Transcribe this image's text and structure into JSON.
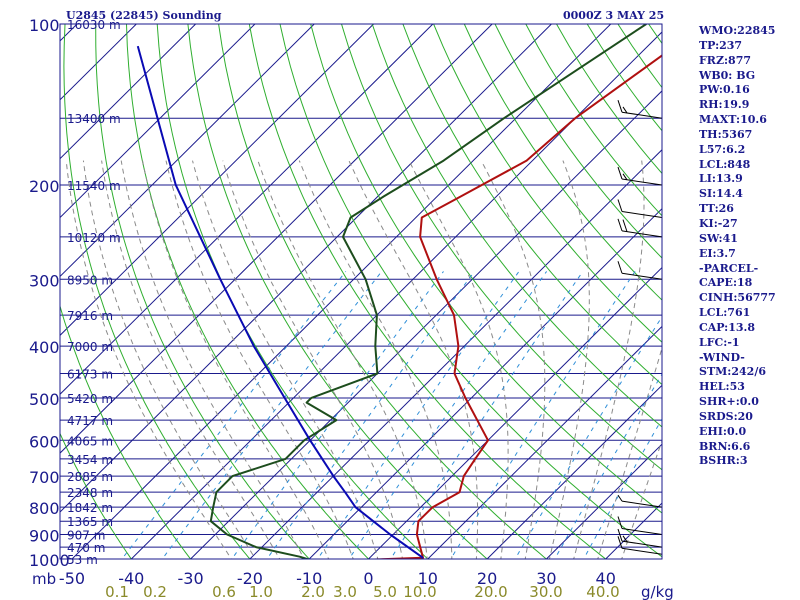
{
  "header": {
    "title": "U2845 (22845) Sounding",
    "time": "0000Z  3 MAY 25"
  },
  "stats": [
    "WMO:22845",
    "TP:237",
    "FRZ:877",
    "WB0: BG",
    "PW:0.16",
    "RH:19.9",
    "MAXT:10.6",
    "TH:5367",
    "L57:6.2",
    "LCL:848",
    "LI:13.9",
    "SI:14.4",
    "TT:26",
    "KI:-27",
    "SW:41",
    "EI:3.7",
    "-PARCEL-",
    "CAPE:18",
    "CINH:56777",
    "LCL:761",
    "CAP:13.8",
    "LFC:-1",
    "-WIND-",
    "STM:242/6",
    "HEL:53",
    "SHR+:0.0",
    "SRDS:20",
    "EHI:0.0",
    "BRN:6.6",
    "BSHR:3"
  ],
  "colors": {
    "frame": "#1a1a8c",
    "isobar": "#1a1a8c",
    "isotherm": "#1a1a8c",
    "dry_adiabat": "#2fae2f",
    "moist_adiabat": "#8a8a8a",
    "mixing_ratio": "#2f8fd8",
    "temperature": "#b01010",
    "dewpoint": "#1d4d1d",
    "parcel": "#0a0ab4",
    "mixing_ratio_label": "#8a8a2a",
    "text": "#1a1a8c"
  },
  "chart_data": {
    "type": "skew-t",
    "pressure_unit": "mb",
    "pressure_levels": [
      100,
      200,
      300,
      400,
      500,
      600,
      700,
      800,
      900,
      1000
    ],
    "height_labels": [
      {
        "p": 100,
        "text": "16030 m"
      },
      {
        "p": 150,
        "text": "13400 m"
      },
      {
        "p": 200,
        "text": "11540 m"
      },
      {
        "p": 250,
        "text": "10120 m"
      },
      {
        "p": 300,
        "text": "8950 m"
      },
      {
        "p": 350,
        "text": "7916 m"
      },
      {
        "p": 400,
        "text": "7000 m"
      },
      {
        "p": 450,
        "text": "6173 m"
      },
      {
        "p": 500,
        "text": "5420 m"
      },
      {
        "p": 550,
        "text": "4717 m"
      },
      {
        "p": 600,
        "text": "4065 m"
      },
      {
        "p": 650,
        "text": "3454 m"
      },
      {
        "p": 700,
        "text": "2885 m"
      },
      {
        "p": 750,
        "text": "2348 m"
      },
      {
        "p": 800,
        "text": "1842 m"
      },
      {
        "p": 850,
        "text": "1365 m"
      },
      {
        "p": 900,
        "text": "907 m"
      },
      {
        "p": 950,
        "text": "470 m"
      },
      {
        "p": 1000,
        "text": "53 m"
      }
    ],
    "temperature_ticks": [
      -50,
      -40,
      -30,
      -20,
      -10,
      0,
      10,
      20,
      30,
      40
    ],
    "temperature_tick_labels": [
      "-50",
      "-40",
      "-30",
      "-20",
      "-10",
      "0",
      "10",
      "20",
      "30",
      "40"
    ],
    "mixing_ratio_labels": [
      "0.1",
      "0.2",
      "0.6",
      "1.0",
      "2.0",
      "3.0",
      "5.0",
      "10.0",
      "20.0",
      "30.0",
      "40.0"
    ],
    "mixing_ratio_unit": "g/kg",
    "series": [
      {
        "key": "temperature",
        "points": [
          [
            1002,
            1
          ],
          [
            995,
            9
          ],
          [
            900,
            4
          ],
          [
            850,
            2
          ],
          [
            800,
            2
          ],
          [
            750,
            4
          ],
          [
            700,
            2
          ],
          [
            650,
            1
          ],
          [
            600,
            0
          ],
          [
            500,
            -11
          ],
          [
            450,
            -17
          ],
          [
            400,
            -21
          ],
          [
            350,
            -27
          ],
          [
            300,
            -36
          ],
          [
            250,
            -46
          ],
          [
            230,
            -49
          ],
          [
            210,
            -46
          ],
          [
            180,
            -41
          ],
          [
            150,
            -40
          ],
          [
            100,
            -34
          ]
        ]
      },
      {
        "key": "dewpoint",
        "points": [
          [
            1002,
            -10
          ],
          [
            990,
            -12
          ],
          [
            950,
            -21
          ],
          [
            900,
            -28
          ],
          [
            850,
            -33
          ],
          [
            800,
            -35
          ],
          [
            750,
            -37
          ],
          [
            700,
            -37
          ],
          [
            650,
            -31
          ],
          [
            600,
            -31
          ],
          [
            550,
            -29
          ],
          [
            510,
            -37
          ],
          [
            500,
            -37
          ],
          [
            450,
            -30
          ],
          [
            400,
            -35
          ],
          [
            350,
            -40
          ],
          [
            300,
            -48
          ],
          [
            250,
            -59
          ],
          [
            230,
            -61
          ],
          [
            210,
            -59
          ],
          [
            180,
            -55
          ],
          [
            150,
            -52
          ],
          [
            100,
            -44
          ]
        ]
      },
      {
        "key": "parcel",
        "points": [
          [
            995,
            9
          ],
          [
            900,
            -0.5
          ],
          [
            800,
            -11
          ],
          [
            750,
            -15.3
          ],
          [
            700,
            -20
          ],
          [
            600,
            -30
          ],
          [
            500,
            -41.5
          ],
          [
            400,
            -55.5
          ],
          [
            300,
            -72.5
          ],
          [
            200,
            -96
          ],
          [
            110,
            -126
          ]
        ]
      }
    ],
    "wind_barbs": [
      {
        "p": 150,
        "speed_kt": 15
      },
      {
        "p": 200,
        "speed_kt": 15
      },
      {
        "p": 230,
        "speed_kt": 10
      },
      {
        "p": 250,
        "speed_kt": 20
      },
      {
        "p": 300,
        "speed_kt": 10
      },
      {
        "p": 800,
        "speed_kt": 5
      },
      {
        "p": 900,
        "speed_kt": 10
      },
      {
        "p": 950,
        "speed_kt": 15
      },
      {
        "p": 980,
        "speed_kt": 10
      }
    ]
  }
}
